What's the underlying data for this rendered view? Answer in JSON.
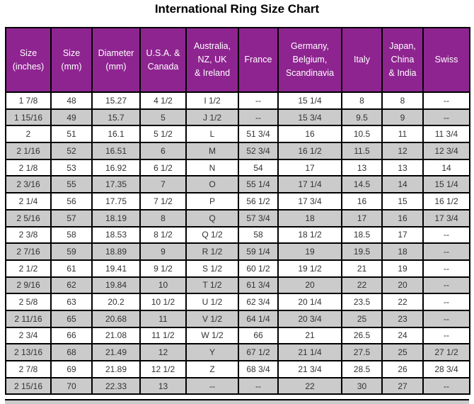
{
  "title": "International Ring Size Chart",
  "colors": {
    "header_bg": "#8E2490",
    "header_text": "#FFFFFF",
    "alt_row_bg": "#CBCBCB",
    "row_bg": "#FFFFFF",
    "border": "#000000",
    "body_text": "#333333",
    "title_text": "#000000"
  },
  "table": {
    "header_labels": [
      "Size\n(inches)",
      "Size\n(mm)",
      "Diameter\n(mm)",
      "U.S.A. &\nCanada",
      "Australia,\nNZ, UK\n& Ireland",
      "France",
      "Germany,\nBelgium,\nScandinavia",
      "Italy",
      "Japan,\nChina\n& India",
      "Swiss"
    ]
  },
  "chart_data": {
    "type": "table",
    "title": "International Ring Size Chart",
    "columns": [
      "Size (inches)",
      "Size (mm)",
      "Diameter (mm)",
      "U.S.A. & Canada",
      "Australia, NZ, UK & Ireland",
      "France",
      "Germany, Belgium, Scandinavia",
      "Italy",
      "Japan, China & India",
      "Swiss"
    ],
    "rows": [
      [
        "1 7/8",
        "48",
        "15.27",
        "4 1/2",
        "I 1/2",
        "--",
        "15 1/4",
        "8",
        "8",
        "--"
      ],
      [
        "1 15/16",
        "49",
        "15.7",
        "5",
        "J 1/2",
        "--",
        "15 3/4",
        "9.5",
        "9",
        "--"
      ],
      [
        "2",
        "51",
        "16.1",
        "5 1/2",
        "L",
        "51 3/4",
        "16",
        "10.5",
        "11",
        "11 3/4"
      ],
      [
        "2 1/16",
        "52",
        "16.51",
        "6",
        "M",
        "52 3/4",
        "16 1/2",
        "11.5",
        "12",
        "12 3/4"
      ],
      [
        "2 1/8",
        "53",
        "16.92",
        "6 1/2",
        "N",
        "54",
        "17",
        "13",
        "13",
        "14"
      ],
      [
        "2 3/16",
        "55",
        "17.35",
        "7",
        "O",
        "55 1/4",
        "17 1/4",
        "14.5",
        "14",
        "15 1/4"
      ],
      [
        "2 1/4",
        "56",
        "17.75",
        "7 1/2",
        "P",
        "56 1/2",
        "17 3/4",
        "16",
        "15",
        "16 1/2"
      ],
      [
        "2 5/16",
        "57",
        "18.19",
        "8",
        "Q",
        "57 3/4",
        "18",
        "17",
        "16",
        "17 3/4"
      ],
      [
        "2 3/8",
        "58",
        "18.53",
        "8 1/2",
        "Q 1/2",
        "58",
        "18 1/2",
        "18.5",
        "17",
        "--"
      ],
      [
        "2 7/16",
        "59",
        "18.89",
        "9",
        "R 1/2",
        "59 1/4",
        "19",
        "19.5",
        "18",
        "--"
      ],
      [
        "2 1/2",
        "61",
        "19.41",
        "9 1/2",
        "S 1/2",
        "60 1/2",
        "19 1/2",
        "21",
        "19",
        "--"
      ],
      [
        "2 9/16",
        "62",
        "19.84",
        "10",
        "T 1/2",
        "61 3/4",
        "20",
        "22",
        "20",
        "--"
      ],
      [
        "2 5/8",
        "63",
        "20.2",
        "10 1/2",
        "U 1/2",
        "62 3/4",
        "20 1/4",
        "23.5",
        "22",
        "--"
      ],
      [
        "2 11/16",
        "65",
        "20.68",
        "11",
        "V 1/2",
        "64 1/4",
        "20 3/4",
        "25",
        "23",
        "--"
      ],
      [
        "2 3/4",
        "66",
        "21.08",
        "11 1/2",
        "W 1/2",
        "66",
        "21",
        "26.5",
        "24",
        "--"
      ],
      [
        "2 13/16",
        "68",
        "21.49",
        "12",
        "Y",
        "67 1/2",
        "21 1/4",
        "27.5",
        "25",
        "27 1/2"
      ],
      [
        "2 7/8",
        "69",
        "21.89",
        "12 1/2",
        "Z",
        "68 3/4",
        "21 3/4",
        "28.5",
        "26",
        "28 3/4"
      ],
      [
        "2 15/16",
        "70",
        "22.33",
        "13",
        "--",
        "--",
        "22",
        "30",
        "27",
        "--"
      ]
    ]
  }
}
